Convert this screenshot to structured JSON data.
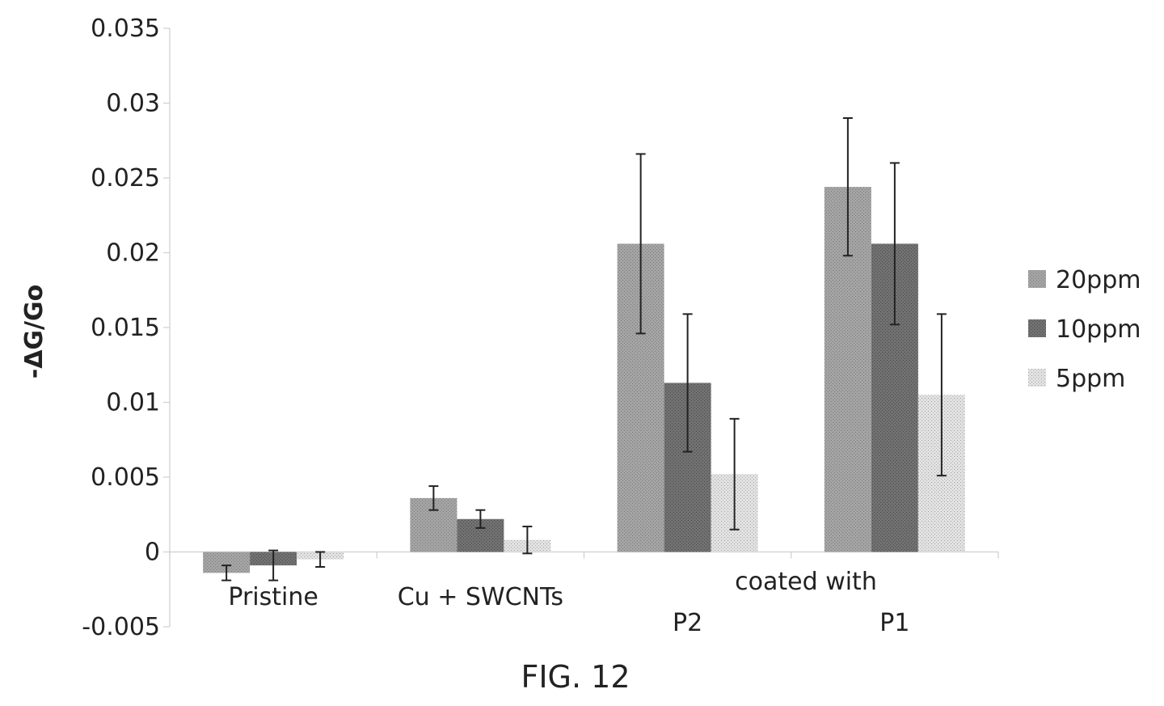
{
  "chart_data": {
    "type": "bar",
    "title": "",
    "xlabel": "",
    "ylabel": "-ΔG/Go",
    "ylim": [
      -0.005,
      0.035
    ],
    "yticks": [
      -0.005,
      0,
      0.005,
      0.01,
      0.015,
      0.02,
      0.025,
      0.03,
      0.035
    ],
    "ytick_labels": [
      "-0.005",
      "0",
      "0.005",
      "0.01",
      "0.015",
      "0.02",
      "0.025",
      "0.03",
      "0.035"
    ],
    "grid": false,
    "legend_position": "right",
    "categories": [
      "Pristine",
      "Cu + SWCNTs",
      "P2",
      "P1"
    ],
    "group_annotation": "coated with",
    "series": [
      {
        "name": "20ppm",
        "color": "#9a9a9a",
        "values": [
          -0.0014,
          0.0036,
          0.0206,
          0.0244
        ],
        "error": [
          0.0005,
          0.0008,
          0.006,
          0.0046
        ]
      },
      {
        "name": "10ppm",
        "color": "#6f6f6f",
        "values": [
          -0.0009,
          0.0022,
          0.0113,
          0.0206
        ],
        "error": [
          0.001,
          0.0006,
          0.0046,
          0.0054
        ]
      },
      {
        "name": "5ppm",
        "color": "#d2d2d2",
        "values": [
          -0.0005,
          0.0008,
          0.0052,
          0.0105
        ],
        "error": [
          0.0005,
          0.0009,
          0.0037,
          0.0054
        ]
      }
    ]
  },
  "caption": "FIG. 12"
}
